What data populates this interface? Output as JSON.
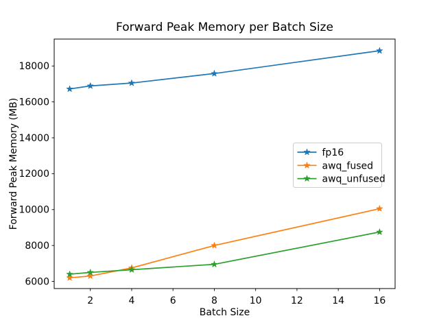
{
  "chart_data": {
    "type": "line",
    "title": "Forward Peak Memory per Batch Size",
    "xlabel": "Batch Size",
    "ylabel": "Forward Peak Memory (MB)",
    "x": [
      1,
      2,
      4,
      8,
      16
    ],
    "series": [
      {
        "name": "fp16",
        "color": "#1f77b4",
        "marker": "star",
        "values": [
          16720,
          16890,
          17050,
          17580,
          18850
        ]
      },
      {
        "name": "awq_fused",
        "color": "#ff7f0e",
        "marker": "star",
        "values": [
          6200,
          6300,
          6750,
          8000,
          10050
        ]
      },
      {
        "name": "awq_unfused",
        "color": "#2ca02c",
        "marker": "star",
        "values": [
          6400,
          6500,
          6650,
          6950,
          8750
        ]
      }
    ],
    "xticks": [
      2,
      4,
      6,
      8,
      10,
      12,
      14,
      16
    ],
    "yticks": [
      6000,
      8000,
      10000,
      12000,
      14000,
      16000,
      18000
    ],
    "xlim": [
      0.25,
      16.75
    ],
    "ylim": [
      5600,
      19500
    ],
    "grid": false,
    "legend": {
      "position": "center-right",
      "entries": [
        "fp16",
        "awq_fused",
        "awq_unfused"
      ],
      "border_color": "#cccccc",
      "background": "#ffffff"
    },
    "axis_color": "#000000",
    "background": "#ffffff"
  }
}
